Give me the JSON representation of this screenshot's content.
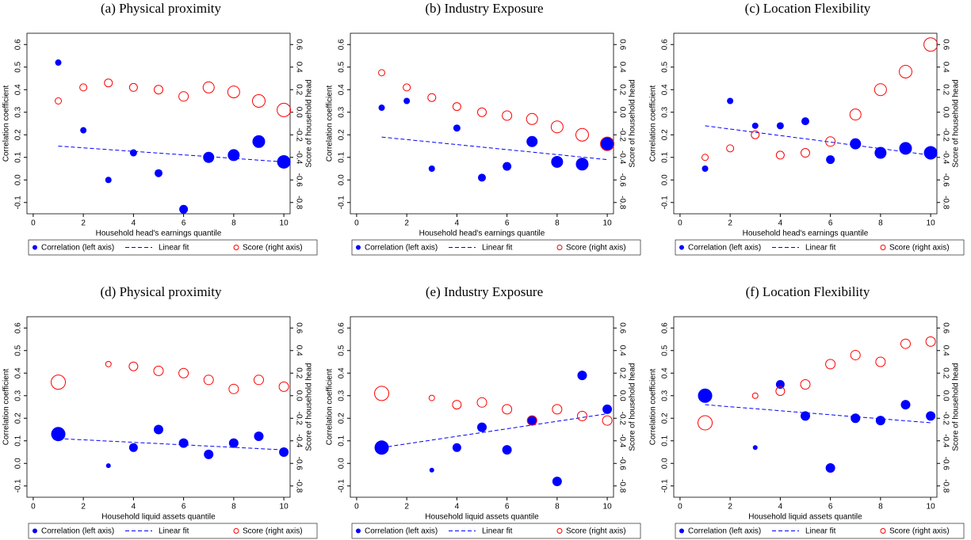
{
  "chart_data": [
    {
      "type": "scatter",
      "title": "(a) Physical proximity",
      "xlabel": "Household head's earnings quantile",
      "ylabel": "Correlation coefficient",
      "y2label": "Score of household head",
      "xlim": [
        -0.25,
        10.25
      ],
      "xticks": [
        0,
        2,
        4,
        6,
        8,
        10
      ],
      "ylim": [
        -0.15,
        0.65
      ],
      "yticks": [
        -0.1,
        {
          "value": 0,
          "label": "0.0"
        },
        0.1,
        0.2,
        0.3,
        0.4,
        0.5,
        0.6
      ],
      "y2lim": [
        -0.9,
        0.7
      ],
      "y2ticks": [
        -0.8,
        -0.6,
        -0.4,
        -0.2,
        {
          "value": 0,
          "label": "0.0"
        },
        0.2,
        0.4,
        0.6
      ],
      "series": [
        {
          "name": "Correlation (left axis)",
          "kind": "dot",
          "color": "#0000ff",
          "x": [
            1,
            2,
            3,
            4,
            5,
            6,
            7,
            8,
            9,
            10
          ],
          "values": [
            0.52,
            0.22,
            0.0,
            0.12,
            0.03,
            -0.13,
            0.1,
            0.11,
            0.17,
            0.08
          ],
          "sizes": [
            4,
            4,
            4,
            4.5,
            5,
            5.5,
            7,
            7.5,
            8,
            8.5
          ]
        },
        {
          "name": "Linear fit",
          "kind": "fit",
          "color": "#0000ff",
          "x": [
            1,
            10
          ],
          "values": [
            0.15,
            0.08
          ]
        },
        {
          "name": "Score (right axis)",
          "kind": "circle",
          "axis": "y2",
          "color": "#ff0000",
          "x": [
            1,
            2,
            3,
            4,
            5,
            6,
            7,
            8,
            9,
            10
          ],
          "values": [
            0.1,
            0.22,
            0.26,
            0.22,
            0.2,
            0.14,
            0.22,
            0.18,
            0.1,
            0.02
          ],
          "sizes": [
            4,
            4.5,
            5,
            5,
            5.5,
            6,
            7,
            7.5,
            8,
            8.5
          ]
        }
      ]
    },
    {
      "type": "scatter",
      "title": "(b) Industry Exposure",
      "xlabel": "Household head's earnings quantile",
      "ylabel": "Correlation coefficient",
      "y2label": "Score of household head",
      "xlim": [
        -0.25,
        10.25
      ],
      "xticks": [
        0,
        2,
        4,
        6,
        8,
        10
      ],
      "ylim": [
        -0.15,
        0.65
      ],
      "yticks": [
        -0.1,
        {
          "value": 0,
          "label": "0.0"
        },
        0.1,
        0.2,
        0.3,
        0.4,
        0.5,
        0.6
      ],
      "y2lim": [
        -0.9,
        0.7
      ],
      "y2ticks": [
        -0.8,
        -0.6,
        -0.4,
        -0.2,
        {
          "value": 0,
          "label": "0.0"
        },
        0.2,
        0.4,
        0.6
      ],
      "series": [
        {
          "name": "Correlation (left axis)",
          "kind": "dot",
          "color": "#0000ff",
          "x": [
            1,
            2,
            3,
            4,
            5,
            6,
            7,
            8,
            9,
            10
          ],
          "values": [
            0.32,
            0.35,
            0.05,
            0.23,
            0.01,
            0.06,
            0.17,
            0.08,
            0.07,
            0.16
          ],
          "sizes": [
            4,
            4,
            4,
            4.5,
            5,
            5.5,
            7,
            7.5,
            8,
            8.5
          ]
        },
        {
          "name": "Linear fit",
          "kind": "fit",
          "color": "#0000ff",
          "x": [
            1,
            10
          ],
          "values": [
            0.19,
            0.09
          ]
        },
        {
          "name": "Score (right axis)",
          "kind": "circle",
          "axis": "y2",
          "color": "#ff0000",
          "x": [
            1,
            2,
            3,
            4,
            5,
            6,
            7,
            8,
            9,
            10
          ],
          "values": [
            0.35,
            0.22,
            0.13,
            0.05,
            0.0,
            -0.03,
            -0.06,
            -0.13,
            -0.2,
            -0.28
          ],
          "sizes": [
            4,
            4.5,
            5,
            5,
            5.5,
            6,
            7,
            7.5,
            8,
            8.5
          ]
        }
      ]
    },
    {
      "type": "scatter",
      "title": "(c) Location Flexibility",
      "xlabel": "Household head's earnings quantile",
      "ylabel": "Correlation coefficient",
      "y2label": "Score of household head",
      "xlim": [
        -0.25,
        10.25
      ],
      "xticks": [
        0,
        2,
        4,
        6,
        8,
        10
      ],
      "ylim": [
        -0.15,
        0.65
      ],
      "yticks": [
        -0.1,
        {
          "value": 0,
          "label": "0.0"
        },
        0.1,
        0.2,
        0.3,
        0.4,
        0.5,
        0.6
      ],
      "y2lim": [
        -0.9,
        0.7
      ],
      "y2ticks": [
        -0.8,
        -0.6,
        -0.4,
        -0.2,
        {
          "value": 0,
          "label": "0.0"
        },
        0.2,
        0.4,
        0.6
      ],
      "series": [
        {
          "name": "Correlation (left axis)",
          "kind": "dot",
          "color": "#0000ff",
          "x": [
            1,
            2,
            3,
            4,
            5,
            6,
            7,
            8,
            9,
            10
          ],
          "values": [
            0.05,
            0.35,
            0.24,
            0.24,
            0.26,
            0.09,
            0.16,
            0.12,
            0.14,
            0.12
          ],
          "sizes": [
            4,
            4,
            4,
            4.5,
            5,
            5.5,
            7,
            7.5,
            8,
            8.5
          ]
        },
        {
          "name": "Linear fit",
          "kind": "fit",
          "color": "#0000ff",
          "x": [
            1,
            10
          ],
          "values": [
            0.24,
            0.11
          ]
        },
        {
          "name": "Score (right axis)",
          "kind": "circle",
          "axis": "y2",
          "color": "#ff0000",
          "x": [
            1,
            2,
            3,
            4,
            5,
            6,
            7,
            8,
            9,
            10
          ],
          "values": [
            -0.4,
            -0.32,
            -0.2,
            -0.38,
            -0.36,
            -0.26,
            -0.02,
            0.2,
            0.36,
            0.6
          ],
          "sizes": [
            4,
            4.5,
            5,
            5,
            5.5,
            6,
            7,
            7.5,
            8,
            8.5
          ]
        }
      ]
    },
    {
      "type": "scatter",
      "title": "(d) Physical proximity",
      "xlabel": "Household liquid assets quantile",
      "ylabel": "Correlation coefficient",
      "y2label": "Score of household head",
      "xlim": [
        -0.25,
        10.25
      ],
      "xticks": [
        0,
        2,
        4,
        6,
        8,
        10
      ],
      "ylim": [
        -0.15,
        0.65
      ],
      "yticks": [
        -0.1,
        {
          "value": 0,
          "label": "0.0"
        },
        0.1,
        0.2,
        0.3,
        0.4,
        0.5,
        0.6
      ],
      "y2lim": [
        -0.9,
        0.7
      ],
      "y2ticks": [
        -0.8,
        -0.6,
        -0.4,
        -0.2,
        {
          "value": 0,
          "label": "0.0"
        },
        0.2,
        0.4,
        0.6
      ],
      "series": [
        {
          "name": "Correlation (left axis)",
          "kind": "dot",
          "color": "#0000ff",
          "x": [
            1,
            3,
            4,
            5,
            6,
            7,
            8,
            9,
            10
          ],
          "values": [
            0.13,
            -0.01,
            0.07,
            0.15,
            0.09,
            0.04,
            0.09,
            0.12,
            0.05
          ],
          "sizes": [
            9,
            3,
            5.5,
            6,
            6,
            6,
            6,
            6,
            6
          ]
        },
        {
          "name": "Linear fit",
          "kind": "fit",
          "color": "#0000ff",
          "x": [
            1,
            10
          ],
          "values": [
            0.11,
            0.06
          ]
        },
        {
          "name": "Score (right axis)",
          "kind": "circle",
          "axis": "y2",
          "color": "#ff0000",
          "x": [
            1,
            3,
            4,
            5,
            6,
            7,
            8,
            9,
            10
          ],
          "values": [
            0.12,
            0.28,
            0.26,
            0.22,
            0.2,
            0.14,
            0.06,
            0.14,
            0.08
          ],
          "sizes": [
            9,
            3.5,
            5.5,
            6,
            6,
            6,
            6,
            6,
            6
          ]
        }
      ]
    },
    {
      "type": "scatter",
      "title": "(e) Industry Exposure",
      "xlabel": "Household liquid assets quantile",
      "ylabel": "Correlation coefficient",
      "y2label": "Score of household head",
      "xlim": [
        -0.25,
        10.25
      ],
      "xticks": [
        0,
        2,
        4,
        6,
        8,
        10
      ],
      "ylim": [
        -0.15,
        0.65
      ],
      "yticks": [
        -0.1,
        {
          "value": 0,
          "label": "0.0"
        },
        0.1,
        0.2,
        0.3,
        0.4,
        0.5,
        0.6
      ],
      "y2lim": [
        -0.9,
        0.7
      ],
      "y2ticks": [
        -0.8,
        -0.6,
        -0.4,
        -0.2,
        {
          "value": 0,
          "label": "0.0"
        },
        0.2,
        0.4,
        0.6
      ],
      "series": [
        {
          "name": "Correlation (left axis)",
          "kind": "dot",
          "color": "#0000ff",
          "x": [
            1,
            3,
            4,
            5,
            6,
            7,
            8,
            9,
            10
          ],
          "values": [
            0.07,
            -0.03,
            0.07,
            0.16,
            0.06,
            0.19,
            -0.08,
            0.39,
            0.24
          ],
          "sizes": [
            9,
            3,
            5.5,
            6,
            6,
            6,
            6,
            6,
            6
          ]
        },
        {
          "name": "Linear fit",
          "kind": "fit",
          "color": "#0000ff",
          "x": [
            1,
            10
          ],
          "values": [
            0.07,
            0.22
          ]
        },
        {
          "name": "Score (right axis)",
          "kind": "circle",
          "axis": "y2",
          "color": "#ff0000",
          "x": [
            1,
            3,
            4,
            5,
            6,
            7,
            8,
            9,
            10
          ],
          "values": [
            0.02,
            -0.02,
            -0.08,
            -0.06,
            -0.12,
            -0.22,
            -0.12,
            -0.18,
            -0.22
          ],
          "sizes": [
            9,
            3.5,
            5.5,
            6,
            6,
            6,
            6,
            6,
            6
          ]
        }
      ]
    },
    {
      "type": "scatter",
      "title": "(f) Location Flexibility",
      "xlabel": "Household liquid assets quantile",
      "ylabel": "Correlation coefficient",
      "y2label": "Score of household head",
      "xlim": [
        -0.25,
        10.25
      ],
      "xticks": [
        0,
        2,
        4,
        6,
        8,
        10
      ],
      "ylim": [
        -0.15,
        0.65
      ],
      "yticks": [
        -0.1,
        {
          "value": 0,
          "label": "0.0"
        },
        0.1,
        0.2,
        0.3,
        0.4,
        0.5,
        0.6
      ],
      "y2lim": [
        -0.9,
        0.7
      ],
      "y2ticks": [
        -0.8,
        -0.6,
        -0.4,
        -0.2,
        {
          "value": 0,
          "label": "0.0"
        },
        0.2,
        0.4,
        0.6
      ],
      "series": [
        {
          "name": "Correlation (left axis)",
          "kind": "dot",
          "color": "#0000ff",
          "x": [
            1,
            3,
            4,
            5,
            6,
            7,
            8,
            9,
            10
          ],
          "values": [
            0.3,
            0.07,
            0.35,
            0.21,
            -0.02,
            0.2,
            0.19,
            0.26,
            0.21
          ],
          "sizes": [
            9,
            3,
            5.5,
            6,
            6,
            6,
            6,
            6,
            6
          ]
        },
        {
          "name": "Linear fit",
          "kind": "fit",
          "color": "#0000ff",
          "x": [
            1,
            10
          ],
          "values": [
            0.26,
            0.18
          ]
        },
        {
          "name": "Score (right axis)",
          "kind": "circle",
          "axis": "y2",
          "color": "#ff0000",
          "x": [
            1,
            3,
            4,
            5,
            6,
            7,
            8,
            9,
            10
          ],
          "values": [
            -0.24,
            0.0,
            0.04,
            0.1,
            0.28,
            0.36,
            0.3,
            0.46,
            0.48
          ],
          "sizes": [
            9,
            3.5,
            5.5,
            6,
            6,
            6,
            6,
            6,
            6
          ]
        }
      ]
    }
  ]
}
